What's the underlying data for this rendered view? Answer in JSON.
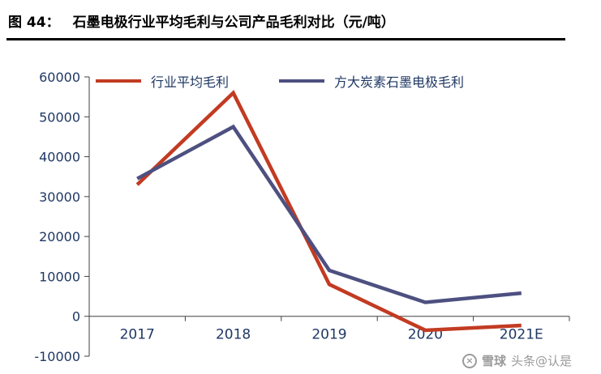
{
  "header": {
    "prefix": "图 44：",
    "title": "石墨电极行业平均毛利与公司产品毛利对比（元/吨）"
  },
  "watermark": {
    "icon_glyph": "×",
    "brand": "雪球",
    "credit": "头条@认是"
  },
  "chart_data": {
    "type": "line",
    "title": "石墨电极行业平均毛利与公司产品毛利对比（元/吨）",
    "categories": [
      "2017",
      "2018",
      "2019",
      "2020",
      "2021E"
    ],
    "series": [
      {
        "name": "行业平均毛利",
        "color": "#c23b22",
        "values": [
          33000,
          56000,
          8000,
          -3500,
          -2300
        ]
      },
      {
        "name": "方大炭素石墨电极毛利",
        "color": "#4d5080",
        "values": [
          34500,
          47500,
          11500,
          3500,
          5800
        ]
      }
    ],
    "xlabel": "",
    "ylabel": "",
    "ylim": [
      -10000,
      60000
    ],
    "ytick_step": 10000,
    "grid": false,
    "legend_position": "top"
  }
}
